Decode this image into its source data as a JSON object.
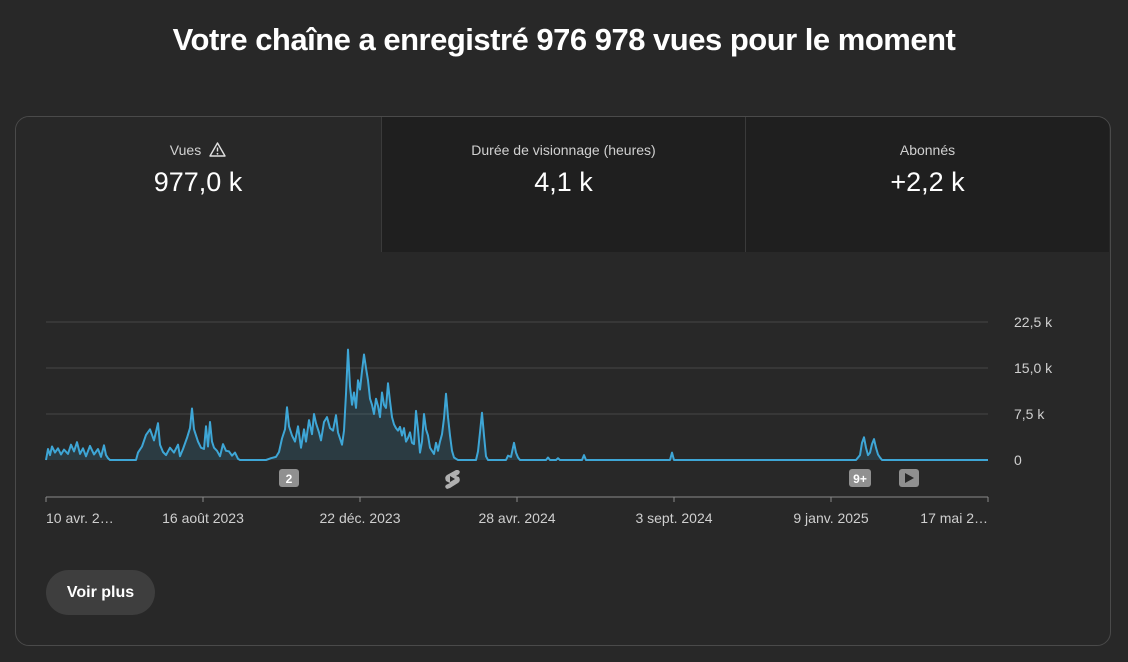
{
  "headline": "Votre chaîne a enregistré 976 978 vues pour le moment",
  "tabs": [
    {
      "label": "Vues",
      "value": "977,0 k",
      "warning_icon": "warning-triangle-icon"
    },
    {
      "label": "Durée de visionnage (heures)",
      "value": "4,1 k"
    },
    {
      "label": "Abonnés",
      "value": "+2,2 k"
    }
  ],
  "more_button": "Voir plus",
  "colors": {
    "line": "#3ea6d6",
    "background": "#282828",
    "grid": "#4a4a4a"
  },
  "markers": [
    {
      "label": "2",
      "near": "octobre 2023",
      "icon": "count-badge"
    },
    {
      "label": "",
      "near": "février 2024",
      "icon": "shorts-icon"
    },
    {
      "label": "9+",
      "near": "janvier 2025",
      "icon": "count-badge"
    },
    {
      "label": "",
      "near": "février 2025",
      "icon": "play-icon"
    }
  ],
  "chart_data": {
    "type": "area",
    "x_tick_labels": [
      "10 avr. 2…",
      "16 août 2023",
      "22 déc. 2023",
      "28 avr. 2024",
      "3 sept. 2024",
      "9 janv. 2025",
      "17 mai 2…"
    ],
    "y_tick_labels": [
      "22,5 k",
      "15,0 k",
      "7,5 k",
      "0"
    ],
    "ylim": [
      0,
      22500
    ],
    "grid": true,
    "series": [
      {
        "values": [
          [
            0,
            0
          ],
          [
            2,
            1800
          ],
          [
            4,
            800
          ],
          [
            6,
            2200
          ],
          [
            9,
            1200
          ],
          [
            12,
            1900
          ],
          [
            15,
            900
          ],
          [
            18,
            1700
          ],
          [
            22,
            1000
          ],
          [
            25,
            2500
          ],
          [
            28,
            1400
          ],
          [
            31,
            2900
          ],
          [
            34,
            1000
          ],
          [
            37,
            1900
          ],
          [
            40,
            600
          ],
          [
            44,
            2300
          ],
          [
            48,
            900
          ],
          [
            52,
            1800
          ],
          [
            55,
            500
          ],
          [
            58,
            2400
          ],
          [
            60,
            800
          ],
          [
            62,
            300
          ],
          [
            64,
            0
          ],
          [
            90,
            0
          ],
          [
            92,
            1200
          ],
          [
            96,
            2200
          ],
          [
            100,
            4100
          ],
          [
            104,
            5000
          ],
          [
            108,
            3200
          ],
          [
            112,
            6000
          ],
          [
            114,
            2500
          ],
          [
            117,
            1300
          ],
          [
            120,
            800
          ],
          [
            124,
            2000
          ],
          [
            128,
            1200
          ],
          [
            132,
            2500
          ],
          [
            134,
            600
          ],
          [
            137,
            1800
          ],
          [
            141,
            3600
          ],
          [
            144,
            5200
          ],
          [
            146,
            8400
          ],
          [
            148,
            5000
          ],
          [
            152,
            3000
          ],
          [
            155,
            2000
          ],
          [
            158,
            1800
          ],
          [
            160,
            5500
          ],
          [
            162,
            2200
          ],
          [
            164,
            6200
          ],
          [
            166,
            3000
          ],
          [
            168,
            2000
          ],
          [
            171,
            1500
          ],
          [
            174,
            600
          ],
          [
            177,
            2600
          ],
          [
            180,
            1500
          ],
          [
            183,
            1400
          ],
          [
            186,
            700
          ],
          [
            189,
            1200
          ],
          [
            192,
            200
          ],
          [
            194,
            0
          ],
          [
            220,
            0
          ],
          [
            225,
            300
          ],
          [
            230,
            500
          ],
          [
            233,
            1300
          ],
          [
            236,
            3500
          ],
          [
            239,
            5000
          ],
          [
            241,
            8600
          ],
          [
            243,
            5500
          ],
          [
            246,
            4000
          ],
          [
            249,
            3000
          ],
          [
            252,
            5500
          ],
          [
            255,
            2000
          ],
          [
            258,
            5000
          ],
          [
            260,
            3000
          ],
          [
            263,
            6500
          ],
          [
            266,
            4200
          ],
          [
            268,
            7500
          ],
          [
            270,
            6000
          ],
          [
            273,
            4500
          ],
          [
            275,
            3200
          ],
          [
            278,
            6200
          ],
          [
            281,
            7000
          ],
          [
            284,
            5200
          ],
          [
            287,
            4800
          ],
          [
            290,
            7300
          ],
          [
            292,
            4500
          ],
          [
            294,
            3500
          ],
          [
            296,
            2500
          ],
          [
            298,
            4800
          ],
          [
            300,
            10800
          ],
          [
            302,
            18000
          ],
          [
            304,
            12000
          ],
          [
            306,
            9000
          ],
          [
            308,
            11000
          ],
          [
            310,
            8500
          ],
          [
            312,
            13000
          ],
          [
            314,
            11500
          ],
          [
            316,
            14500
          ],
          [
            318,
            17200
          ],
          [
            320,
            15000
          ],
          [
            322,
            13000
          ],
          [
            324,
            10000
          ],
          [
            326,
            9000
          ],
          [
            328,
            7500
          ],
          [
            330,
            10000
          ],
          [
            332,
            8800
          ],
          [
            334,
            7000
          ],
          [
            336,
            11000
          ],
          [
            338,
            9000
          ],
          [
            340,
            8500
          ],
          [
            342,
            12500
          ],
          [
            344,
            9600
          ],
          [
            346,
            7000
          ],
          [
            348,
            5800
          ],
          [
            350,
            5200
          ],
          [
            352,
            4800
          ],
          [
            354,
            5400
          ],
          [
            356,
            4000
          ],
          [
            358,
            5200
          ],
          [
            360,
            3000
          ],
          [
            362,
            3600
          ],
          [
            364,
            4500
          ],
          [
            366,
            2800
          ],
          [
            368,
            2600
          ],
          [
            370,
            8000
          ],
          [
            372,
            5000
          ],
          [
            374,
            1200
          ],
          [
            376,
            3000
          ],
          [
            378,
            7500
          ],
          [
            380,
            5000
          ],
          [
            382,
            4000
          ],
          [
            384,
            2000
          ],
          [
            386,
            1500
          ],
          [
            388,
            1000
          ],
          [
            390,
            2800
          ],
          [
            392,
            1500
          ],
          [
            394,
            3000
          ],
          [
            396,
            4200
          ],
          [
            398,
            6800
          ],
          [
            400,
            10800
          ],
          [
            402,
            7000
          ],
          [
            404,
            4000
          ],
          [
            406,
            1500
          ],
          [
            408,
            400
          ],
          [
            410,
            200
          ],
          [
            412,
            0
          ],
          [
            430,
            0
          ],
          [
            432,
            1400
          ],
          [
            434,
            4500
          ],
          [
            436,
            7700
          ],
          [
            438,
            4000
          ],
          [
            440,
            600
          ],
          [
            442,
            0
          ],
          [
            460,
            0
          ],
          [
            462,
            700
          ],
          [
            465,
            500
          ],
          [
            468,
            2800
          ],
          [
            470,
            1200
          ],
          [
            472,
            400
          ],
          [
            474,
            0
          ],
          [
            500,
            0
          ],
          [
            502,
            400
          ],
          [
            504,
            0
          ],
          [
            510,
            0
          ],
          [
            512,
            300
          ],
          [
            514,
            0
          ],
          [
            536,
            0
          ],
          [
            538,
            800
          ],
          [
            540,
            0
          ],
          [
            624,
            0
          ],
          [
            626,
            1200
          ],
          [
            628,
            0
          ],
          [
            810,
            0
          ],
          [
            814,
            800
          ],
          [
            816,
            2800
          ],
          [
            818,
            3700
          ],
          [
            820,
            2000
          ],
          [
            822,
            800
          ],
          [
            824,
            1200
          ],
          [
            826,
            2600
          ],
          [
            828,
            3400
          ],
          [
            830,
            2000
          ],
          [
            832,
            900
          ],
          [
            834,
            400
          ],
          [
            836,
            0
          ],
          [
            942,
            0
          ]
        ]
      }
    ]
  }
}
